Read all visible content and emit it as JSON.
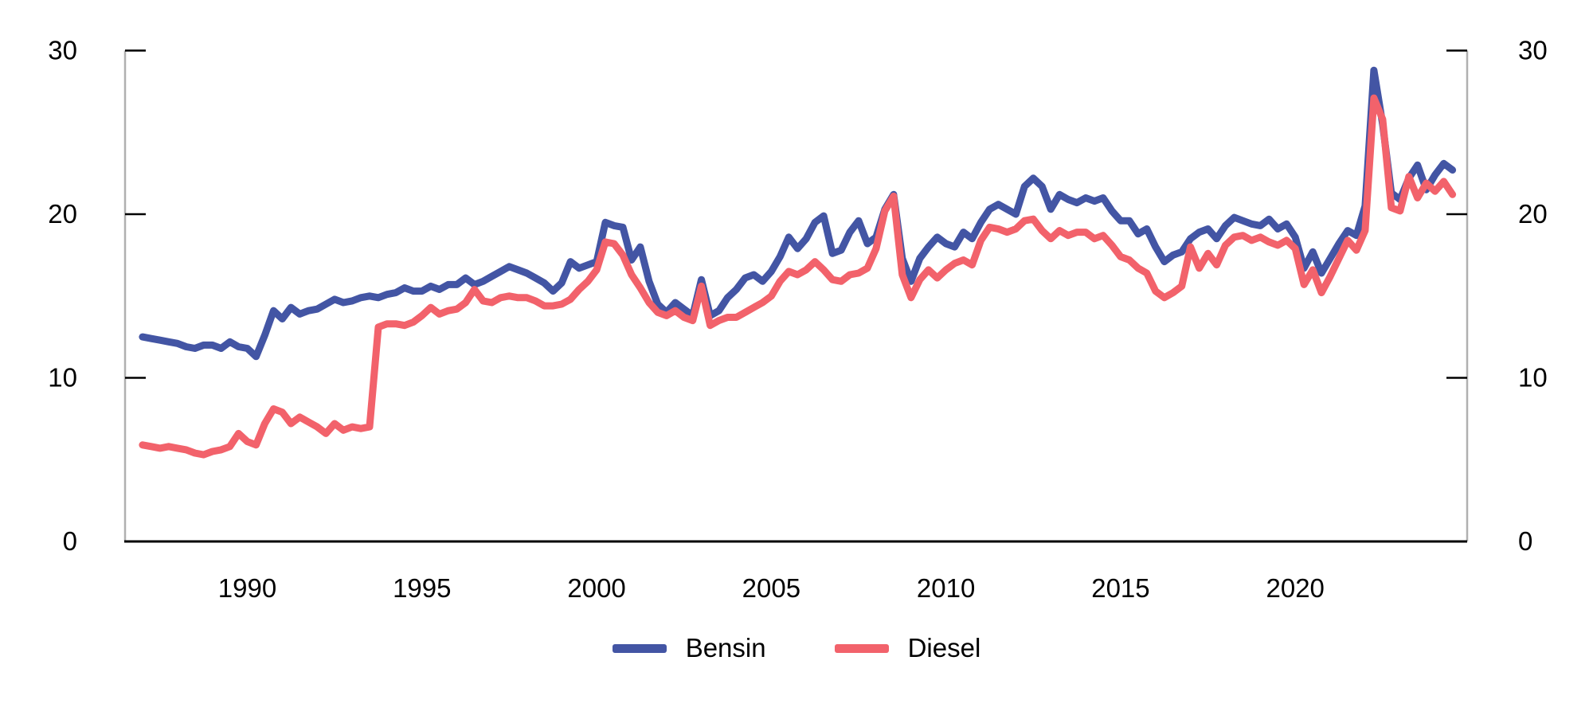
{
  "chart_data": {
    "type": "line",
    "title": "",
    "xlabel": "",
    "ylabel": "",
    "xlim": [
      1986.5,
      2024.92
    ],
    "ylim": [
      0,
      30
    ],
    "grid": false,
    "legend_position": "bottom-center",
    "y_ticks": [
      0,
      10,
      20,
      30
    ],
    "y_tick_sides": "both",
    "x_tick_years": [
      1990,
      1995,
      2000,
      2005,
      2010,
      2015,
      2020
    ],
    "x_tick_labels": [
      "1990",
      "1995",
      "2000",
      "2005",
      "2010",
      "2015",
      "2020"
    ],
    "x_start": 1987.0,
    "x_step": 0.25,
    "x_unit": "year (quarterly samples)",
    "series": [
      {
        "name": "Bensin",
        "color": "#4355A4",
        "values": [
          12.5,
          12.4,
          12.3,
          12.2,
          12.1,
          11.9,
          11.8,
          12.0,
          12.0,
          11.8,
          12.2,
          11.9,
          11.8,
          11.3,
          12.6,
          14.1,
          13.6,
          14.3,
          13.9,
          14.1,
          14.2,
          14.5,
          14.8,
          14.6,
          14.7,
          14.9,
          15.0,
          14.9,
          15.1,
          15.2,
          15.5,
          15.3,
          15.3,
          15.6,
          15.4,
          15.7,
          15.7,
          16.1,
          15.7,
          15.9,
          16.2,
          16.5,
          16.8,
          16.6,
          16.4,
          16.1,
          15.8,
          15.3,
          15.8,
          17.1,
          16.7,
          16.9,
          17.1,
          19.5,
          19.3,
          19.2,
          17.2,
          18.0,
          15.9,
          14.5,
          14.0,
          14.6,
          14.2,
          13.8,
          16.0,
          13.8,
          14.1,
          14.9,
          15.4,
          16.1,
          16.3,
          15.9,
          16.5,
          17.4,
          18.6,
          17.9,
          18.5,
          19.5,
          19.9,
          17.6,
          17.8,
          18.9,
          19.6,
          18.2,
          18.6,
          20.3,
          21.2,
          17.3,
          15.9,
          17.3,
          18.0,
          18.6,
          18.2,
          18.0,
          18.9,
          18.5,
          19.5,
          20.3,
          20.6,
          20.3,
          20.0,
          21.7,
          22.2,
          21.7,
          20.3,
          21.2,
          20.9,
          20.7,
          21.0,
          20.8,
          21.0,
          20.2,
          19.6,
          19.6,
          18.8,
          19.1,
          18.0,
          17.1,
          17.5,
          17.7,
          18.5,
          18.9,
          19.1,
          18.5,
          19.3,
          19.8,
          19.6,
          19.4,
          19.3,
          19.7,
          19.1,
          19.4,
          18.6,
          16.7,
          17.7,
          16.4,
          17.3,
          18.2,
          19.0,
          18.7,
          20.5,
          28.8,
          25.5,
          21.3,
          20.9,
          22.2,
          23.0,
          21.5,
          22.4,
          23.1,
          22.7
        ]
      },
      {
        "name": "Diesel",
        "color": "#F2626B",
        "values": [
          5.9,
          5.8,
          5.7,
          5.8,
          5.7,
          5.6,
          5.4,
          5.3,
          5.5,
          5.6,
          5.8,
          6.6,
          6.1,
          5.9,
          7.2,
          8.1,
          7.9,
          7.2,
          7.6,
          7.3,
          7.0,
          6.6,
          7.2,
          6.8,
          7.0,
          6.9,
          7.0,
          13.1,
          13.3,
          13.3,
          13.2,
          13.4,
          13.8,
          14.3,
          13.9,
          14.1,
          14.2,
          14.6,
          15.4,
          14.7,
          14.6,
          14.9,
          15.0,
          14.9,
          14.9,
          14.7,
          14.4,
          14.4,
          14.5,
          14.8,
          15.4,
          15.9,
          16.6,
          18.3,
          18.2,
          17.5,
          16.3,
          15.5,
          14.6,
          14.0,
          13.8,
          14.1,
          13.7,
          13.5,
          15.6,
          13.2,
          13.5,
          13.7,
          13.7,
          14.0,
          14.3,
          14.6,
          15.0,
          15.9,
          16.5,
          16.3,
          16.6,
          17.1,
          16.6,
          16.0,
          15.9,
          16.3,
          16.4,
          16.7,
          17.9,
          20.2,
          21.1,
          16.3,
          14.9,
          16.0,
          16.6,
          16.1,
          16.6,
          17.0,
          17.2,
          16.9,
          18.4,
          19.2,
          19.1,
          18.9,
          19.1,
          19.6,
          19.7,
          19.0,
          18.5,
          19.0,
          18.7,
          18.9,
          18.9,
          18.5,
          18.7,
          18.1,
          17.4,
          17.2,
          16.7,
          16.4,
          15.3,
          14.9,
          15.2,
          15.6,
          18.0,
          16.7,
          17.6,
          16.9,
          18.1,
          18.6,
          18.7,
          18.4,
          18.6,
          18.3,
          18.1,
          18.4,
          17.9,
          15.7,
          16.6,
          15.2,
          16.2,
          17.3,
          18.4,
          17.8,
          19.0,
          27.1,
          25.8,
          20.4,
          20.2,
          22.3,
          21.0,
          21.9,
          21.4,
          22.0,
          21.2
        ]
      }
    ]
  },
  "legend": {
    "items": [
      {
        "label": "Bensin",
        "color": "#4355A4"
      },
      {
        "label": "Diesel",
        "color": "#F2626B"
      }
    ]
  },
  "style_colors": {
    "axis_line_gray": "#b0b0b0",
    "axis_line_black": "#000000",
    "text": "#000000",
    "background": "#ffffff"
  }
}
